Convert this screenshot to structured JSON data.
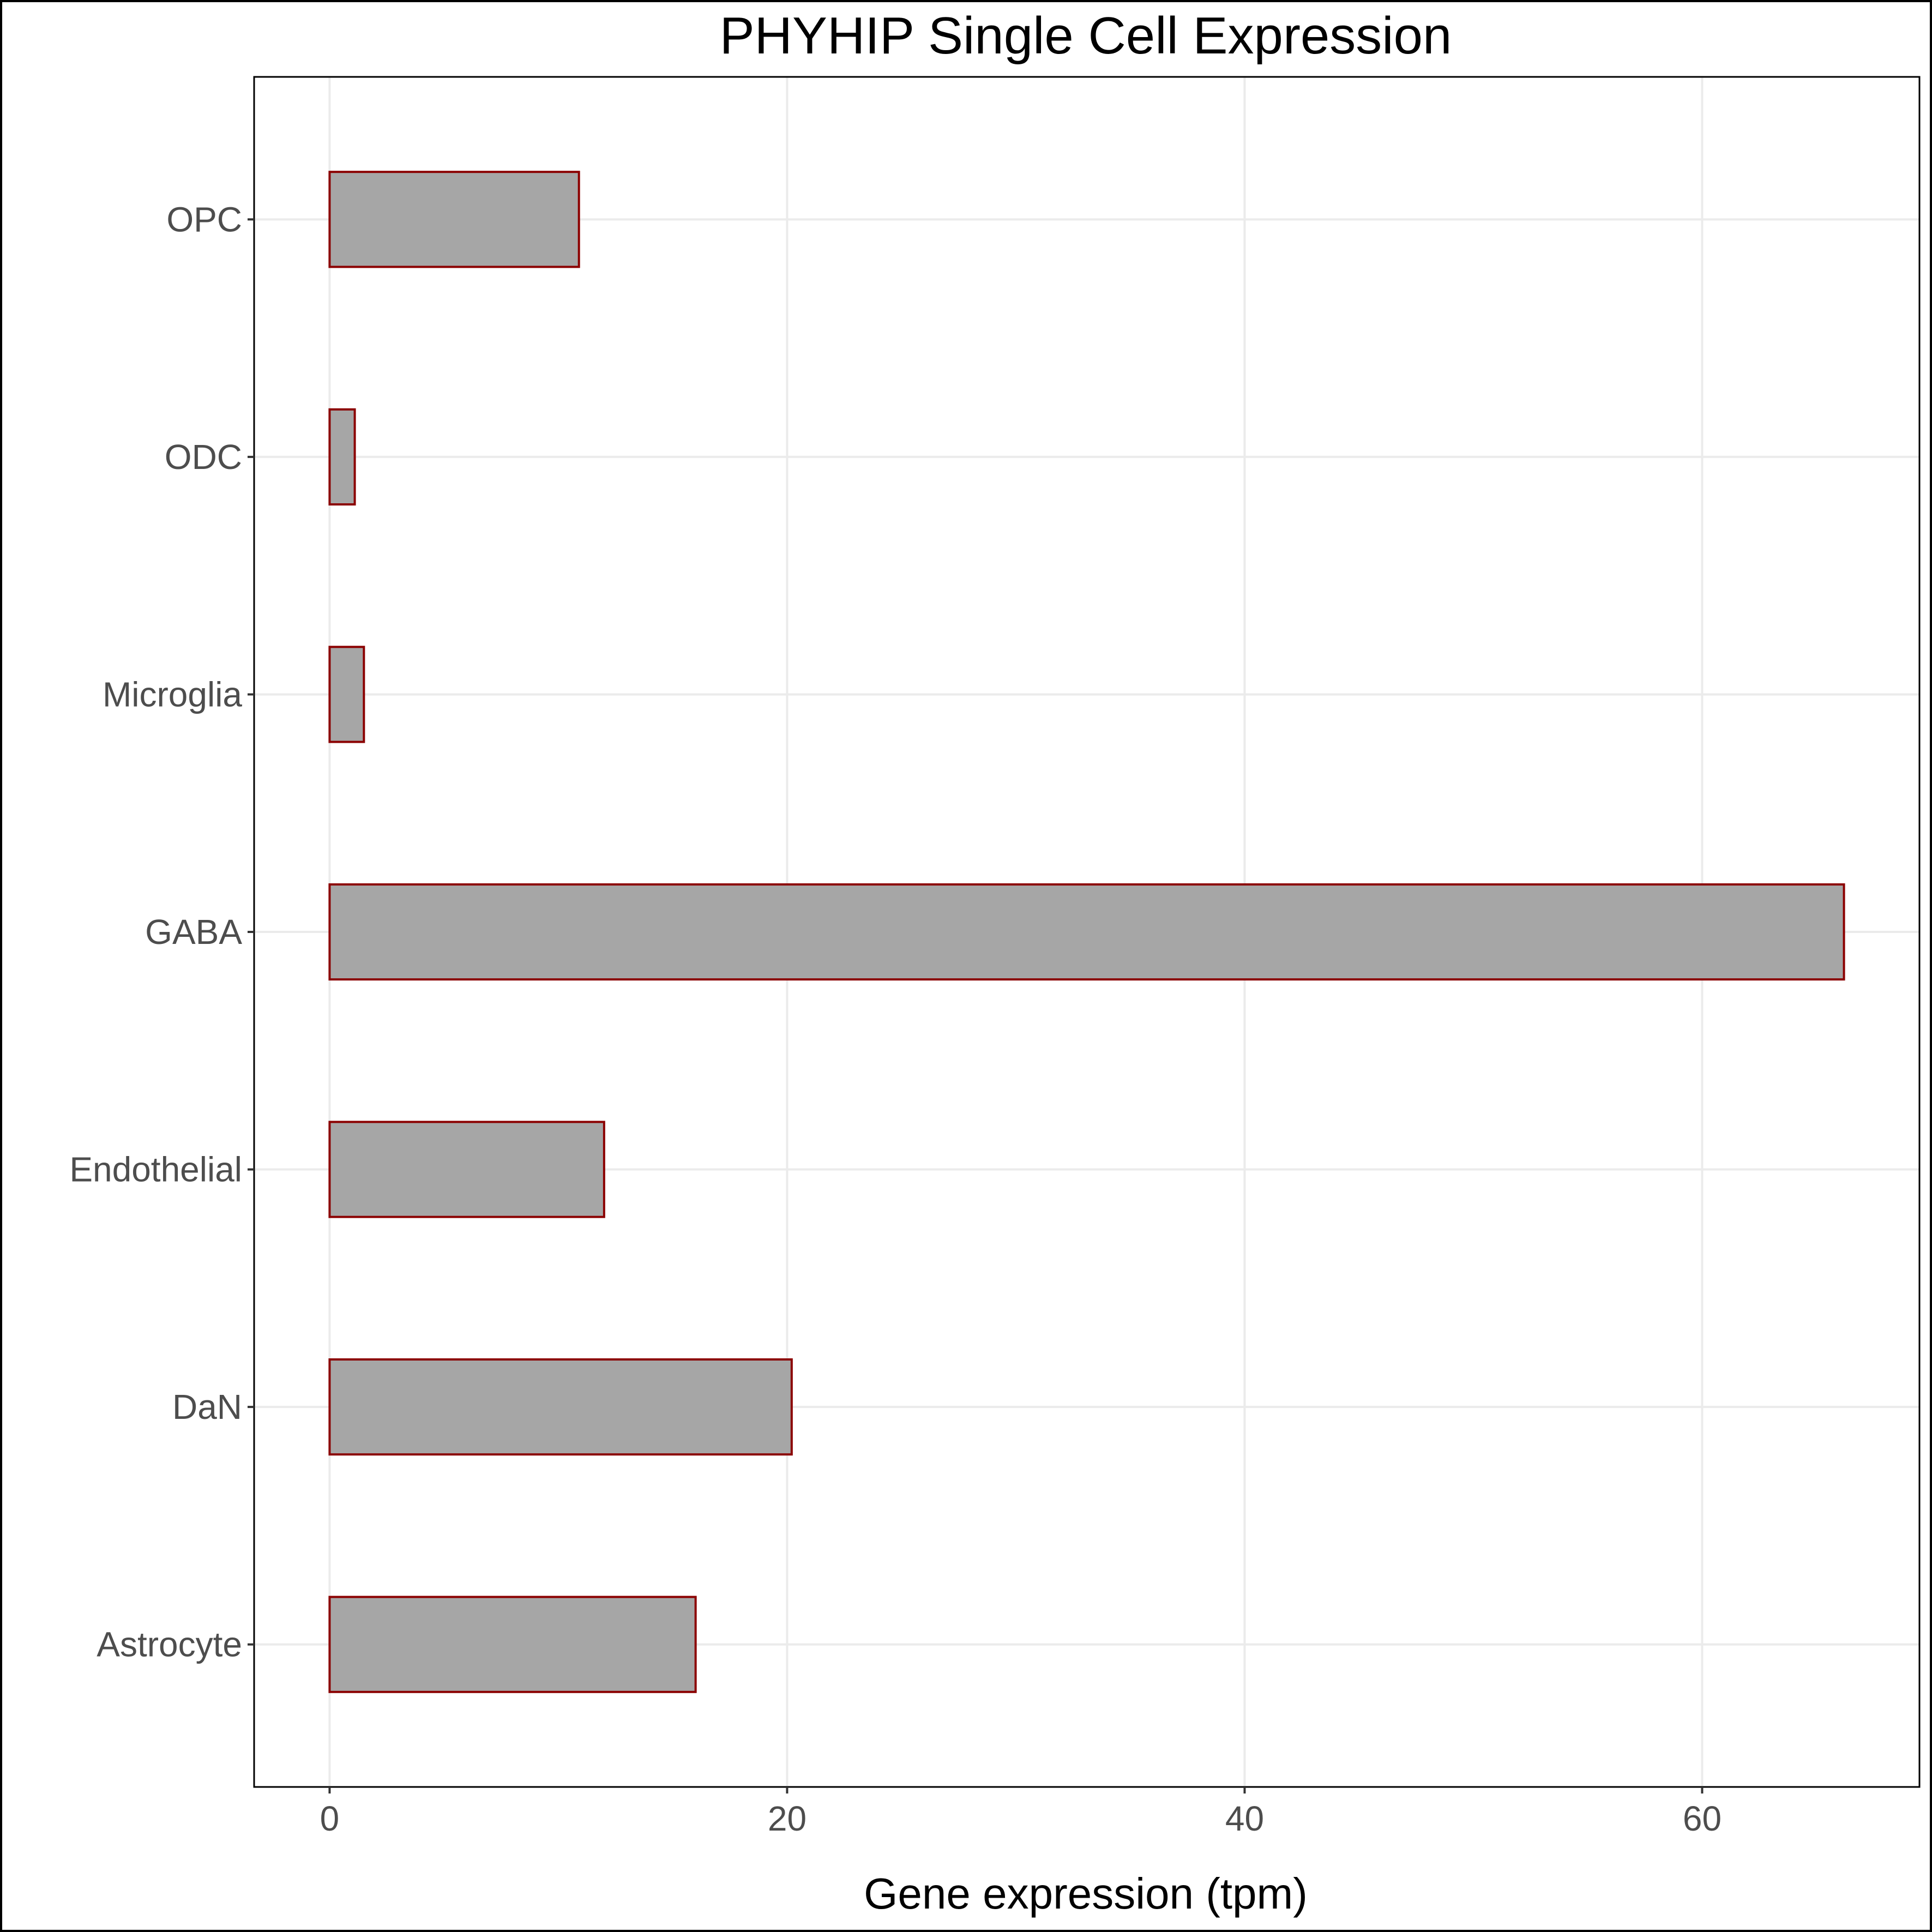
{
  "chart_data": {
    "type": "bar",
    "orientation": "horizontal",
    "title": "PHYHIP Single Cell Expression",
    "xlabel": "Gene expression (tpm)",
    "ylabel": "",
    "categories": [
      "Astrocyte",
      "DaN",
      "Endothelial",
      "GABA",
      "Microglia",
      "ODC",
      "OPC"
    ],
    "values": [
      16.0,
      20.2,
      12.0,
      66.2,
      1.5,
      1.1,
      10.9
    ],
    "xlim": [
      -3.3,
      69.5
    ],
    "xticks": [
      0,
      20,
      40,
      60
    ],
    "xtick_labels": [
      "0",
      "20",
      "40",
      "60"
    ],
    "grid": true,
    "legend": "none",
    "colors": {
      "bar_fill": "#a6a6a6",
      "bar_stroke": "#8b0000",
      "grid": "#ebebeb",
      "panel_border": "#000000",
      "background": "#ffffff"
    }
  }
}
